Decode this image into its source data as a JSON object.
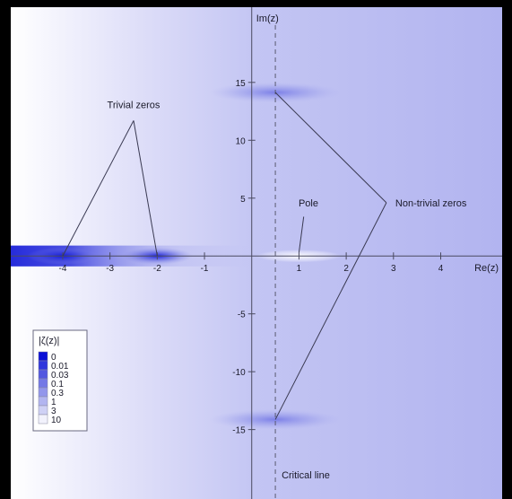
{
  "axes": {
    "x_label": "Re(z)",
    "y_label": "Im(z)",
    "x_ticks": [
      {
        "value": -4,
        "label": "-4"
      },
      {
        "value": -3,
        "label": "-3"
      },
      {
        "value": -2,
        "label": "-2"
      },
      {
        "value": -1,
        "label": "-1"
      },
      {
        "value": 1,
        "label": "1"
      },
      {
        "value": 2,
        "label": "2"
      },
      {
        "value": 3,
        "label": "3"
      },
      {
        "value": 4,
        "label": "4"
      }
    ],
    "y_ticks": [
      {
        "value": 15,
        "label": "15"
      },
      {
        "value": 10,
        "label": "10"
      },
      {
        "value": 5,
        "label": "5"
      },
      {
        "value": -5,
        "label": "-5"
      },
      {
        "value": -10,
        "label": "-10"
      },
      {
        "value": -15,
        "label": "-15"
      }
    ],
    "x_range": [
      -5.1,
      5.3
    ],
    "y_range": [
      -21,
      21.5
    ]
  },
  "critical_line": {
    "re": 0.5,
    "label": "Critical line"
  },
  "annotations": {
    "trivial_zeros": {
      "label": "Trivial zeros",
      "points": [
        [
          -4,
          0
        ],
        [
          -2,
          0
        ]
      ]
    },
    "pole": {
      "label": "Pole",
      "point": [
        1,
        0
      ]
    },
    "non_trivial_zeros": {
      "label": "Non-trivial zeros",
      "points": [
        [
          0.5,
          14.13
        ],
        [
          0.5,
          -14.13
        ]
      ]
    }
  },
  "legend": {
    "title": "|ζ(z)|",
    "items": [
      {
        "label": "0",
        "color": "#0a0fd6"
      },
      {
        "label": "0.01",
        "color": "#3036dc"
      },
      {
        "label": "0.03",
        "color": "#5257e0"
      },
      {
        "label": "0.1",
        "color": "#7378e6"
      },
      {
        "label": "0.3",
        "color": "#9296eb"
      },
      {
        "label": "1",
        "color": "#b2b5f0"
      },
      {
        "label": "3",
        "color": "#cfd1f5"
      },
      {
        "label": "10",
        "color": "#f2f2fc"
      }
    ]
  },
  "colors": {
    "background": "#000000",
    "plot_base": "#b6b8f1",
    "zero_color": "#0a12d8",
    "axis": "#4a4a60",
    "text": "#1a1a2a"
  }
}
